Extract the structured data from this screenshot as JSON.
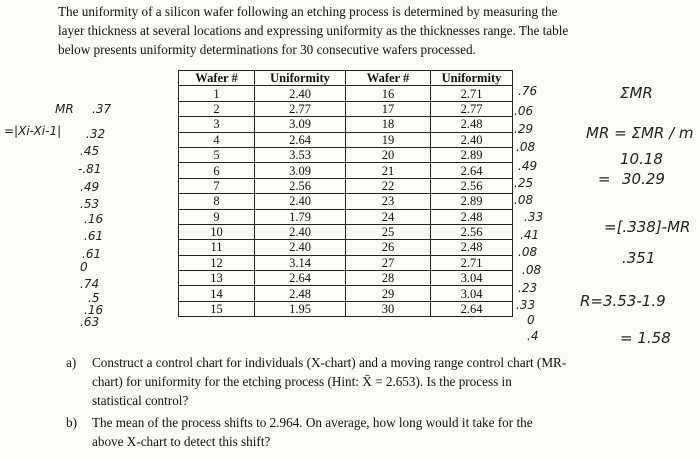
{
  "intro": {
    "lines": [
      "The uniformity of a silicon wafer following an etching process is determined by measuring the",
      "layer thickness at several locations and expressing uniformity as the thicknesses range. The table",
      "below presents uniformity determinations for 30 consecutive wafers processed."
    ]
  },
  "table": {
    "header": [
      "Wafer #",
      "Uniformity",
      "Wafer #",
      "Uniformity"
    ],
    "rows": [
      [
        "1",
        "2.40",
        "16",
        "2.71"
      ],
      [
        "2",
        "2.77",
        "17",
        "2.77"
      ],
      [
        "3",
        "3.09",
        "18",
        "2.48"
      ],
      [
        "4",
        "2.64",
        "19",
        "2.40"
      ],
      [
        "5",
        "3.53",
        "20",
        "2.89"
      ],
      [
        "6",
        "3.09",
        "21",
        "2.64"
      ],
      [
        "7",
        "2.56",
        "22",
        "2.56"
      ],
      [
        "8",
        "2.40",
        "23",
        "2.89"
      ],
      [
        "9",
        "1.79",
        "24",
        "2.48"
      ],
      [
        "10",
        "2.40",
        "25",
        "2.56"
      ],
      [
        "11",
        "2.40",
        "26",
        "2.48"
      ],
      [
        "12",
        "3.14",
        "27",
        "2.71"
      ],
      [
        "13",
        "2.64",
        "28",
        "3.04"
      ],
      [
        "14",
        "2.48",
        "29",
        "3.04"
      ],
      [
        "15",
        "1.95",
        "30",
        "2.64"
      ]
    ]
  },
  "questions": [
    {
      "label": "a)",
      "lines": [
        "Construct a control chart for individuals (X-chart) and a moving range control chart (MR-",
        "chart) for uniformity for the etching process (Hint: X̄ = 2.653). Is the process in",
        "statistical control?"
      ]
    },
    {
      "label": "b)",
      "lines": [
        "The mean of the process shifts to 2.964. On average, how long would it take for the",
        "above X-chart to detect this shift?"
      ]
    }
  ],
  "handwriting": [
    "MR",
    ".37",
    "=|Xi-Xi-1|",
    ".32",
    ".45",
    "-.81",
    ".49",
    ".53",
    ".16",
    ".61",
    ".61",
    "0",
    ".74",
    ".5",
    ".16",
    ".63",
    ".76",
    ".06",
    ".29",
    ".08",
    ".49",
    ".25",
    ".08",
    ".33",
    ".41",
    ".08",
    ".08",
    ".23",
    ".33",
    "0",
    ".4",
    "ΣMR",
    "MR = ΣMR / m",
    "10.18",
    "=",
    "30.29",
    "=[.338]-MR",
    ".351",
    "R=3.53-1.9",
    "= 1.58"
  ]
}
